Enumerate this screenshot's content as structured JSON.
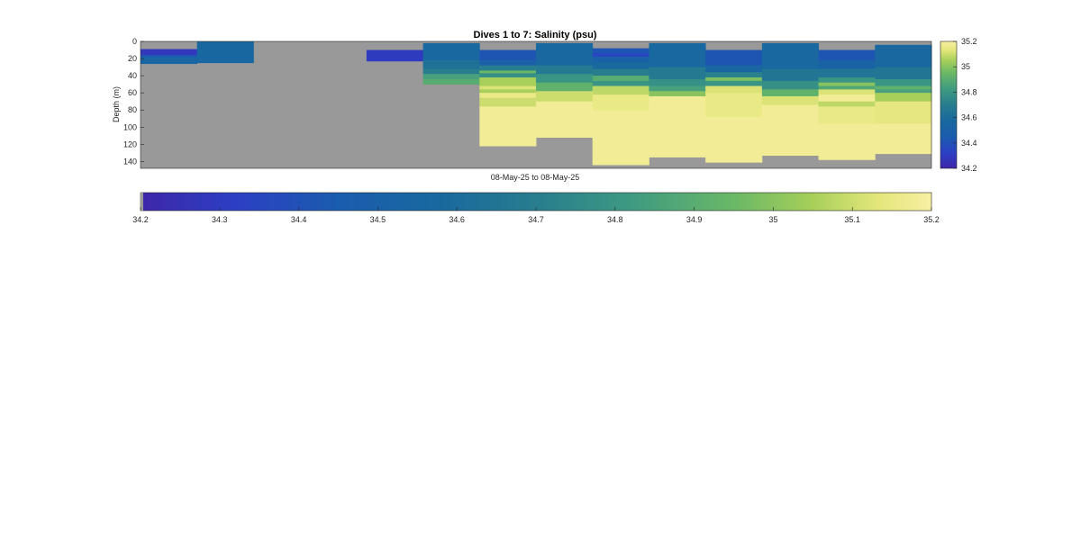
{
  "chart_data": {
    "type": "heatmap",
    "title": "Dives 1 to 7: Salinity (psu)",
    "xlabel": "08-May-25 to 08-May-25",
    "ylabel": "Depth (m)",
    "ylim": [
      0,
      148
    ],
    "y_ticks": [
      0,
      20,
      40,
      60,
      80,
      100,
      120,
      140
    ],
    "grid": false,
    "colormap": "parula-like (dark blue → green → pale yellow)",
    "missing_color": "#999999",
    "colorbar_right": {
      "ticks": [
        "35.2",
        "35",
        "34.8",
        "34.6",
        "34.4",
        "34.2"
      ],
      "range": [
        34.2,
        35.2
      ]
    },
    "colorbar_bottom": {
      "ticks": [
        "34.2",
        "34.3",
        "34.4",
        "34.5",
        "34.6",
        "34.7",
        "34.8",
        "34.9",
        "35",
        "35.1",
        "35.2"
      ],
      "range": [
        34.2,
        35.2
      ]
    },
    "profiles": [
      {
        "top": 9,
        "bottom": 26,
        "layers": [
          [
            9,
            16,
            34.28
          ],
          [
            16,
            19,
            34.45
          ],
          [
            19,
            26,
            34.55
          ]
        ]
      },
      {
        "top": 0,
        "bottom": 25,
        "layers": [
          [
            0,
            25,
            34.56
          ]
        ]
      },
      null,
      null,
      {
        "top": 10,
        "bottom": 23,
        "layers": [
          [
            10,
            23,
            34.3
          ]
        ]
      },
      {
        "top": 2,
        "bottom": 50,
        "layers": [
          [
            2,
            22,
            34.57
          ],
          [
            22,
            32,
            34.63
          ],
          [
            32,
            38,
            34.7
          ],
          [
            38,
            44,
            34.85
          ],
          [
            44,
            50,
            34.9
          ]
        ]
      },
      {
        "top": 10,
        "bottom": 122,
        "layers": [
          [
            10,
            22,
            34.42
          ],
          [
            22,
            28,
            34.5
          ],
          [
            28,
            34,
            34.7
          ],
          [
            34,
            37,
            34.95
          ],
          [
            37,
            42,
            34.78
          ],
          [
            42,
            52,
            35.05
          ],
          [
            52,
            56,
            35.12
          ],
          [
            56,
            60,
            35.05
          ],
          [
            60,
            66,
            35.15
          ],
          [
            66,
            76,
            35.1
          ],
          [
            76,
            122,
            35.18
          ]
        ]
      },
      {
        "top": 2,
        "bottom": 112,
        "layers": [
          [
            2,
            28,
            34.57
          ],
          [
            28,
            38,
            34.68
          ],
          [
            38,
            48,
            34.8
          ],
          [
            48,
            58,
            34.92
          ],
          [
            58,
            70,
            35.1
          ],
          [
            70,
            112,
            35.18
          ]
        ]
      },
      {
        "top": 8,
        "bottom": 144,
        "layers": [
          [
            8,
            14,
            34.42
          ],
          [
            14,
            18,
            34.35
          ],
          [
            18,
            24,
            34.5
          ],
          [
            24,
            32,
            34.58
          ],
          [
            32,
            40,
            34.7
          ],
          [
            40,
            46,
            34.9
          ],
          [
            46,
            52,
            34.8
          ],
          [
            52,
            62,
            35.08
          ],
          [
            62,
            80,
            35.15
          ],
          [
            80,
            144,
            35.18
          ]
        ]
      },
      {
        "top": 2,
        "bottom": 135,
        "layers": [
          [
            2,
            30,
            34.57
          ],
          [
            30,
            44,
            34.68
          ],
          [
            44,
            52,
            34.78
          ],
          [
            52,
            58,
            34.85
          ],
          [
            58,
            64,
            35.0
          ],
          [
            64,
            135,
            35.18
          ]
        ]
      },
      {
        "top": 10,
        "bottom": 141,
        "layers": [
          [
            10,
            28,
            34.42
          ],
          [
            28,
            36,
            34.55
          ],
          [
            36,
            42,
            34.72
          ],
          [
            42,
            46,
            34.98
          ],
          [
            46,
            52,
            34.8
          ],
          [
            52,
            60,
            35.12
          ],
          [
            60,
            88,
            35.15
          ],
          [
            88,
            141,
            35.18
          ]
        ]
      },
      {
        "top": 2,
        "bottom": 133,
        "layers": [
          [
            2,
            32,
            34.57
          ],
          [
            32,
            46,
            34.66
          ],
          [
            46,
            56,
            34.78
          ],
          [
            56,
            64,
            34.92
          ],
          [
            64,
            74,
            35.12
          ],
          [
            74,
            133,
            35.18
          ]
        ]
      },
      {
        "top": 10,
        "bottom": 138,
        "layers": [
          [
            10,
            22,
            34.42
          ],
          [
            22,
            32,
            34.52
          ],
          [
            32,
            42,
            34.65
          ],
          [
            42,
            48,
            34.8
          ],
          [
            48,
            52,
            35.0
          ],
          [
            52,
            56,
            34.88
          ],
          [
            56,
            62,
            35.12
          ],
          [
            62,
            70,
            35.18
          ],
          [
            70,
            76,
            35.08
          ],
          [
            76,
            96,
            35.15
          ],
          [
            96,
            138,
            35.18
          ]
        ]
      },
      {
        "top": 4,
        "bottom": 131,
        "layers": [
          [
            4,
            30,
            34.57
          ],
          [
            30,
            44,
            34.66
          ],
          [
            44,
            52,
            34.8
          ],
          [
            52,
            56,
            34.92
          ],
          [
            56,
            60,
            34.85
          ],
          [
            60,
            70,
            35.05
          ],
          [
            70,
            96,
            35.14
          ],
          [
            96,
            131,
            35.18
          ]
        ]
      }
    ]
  }
}
